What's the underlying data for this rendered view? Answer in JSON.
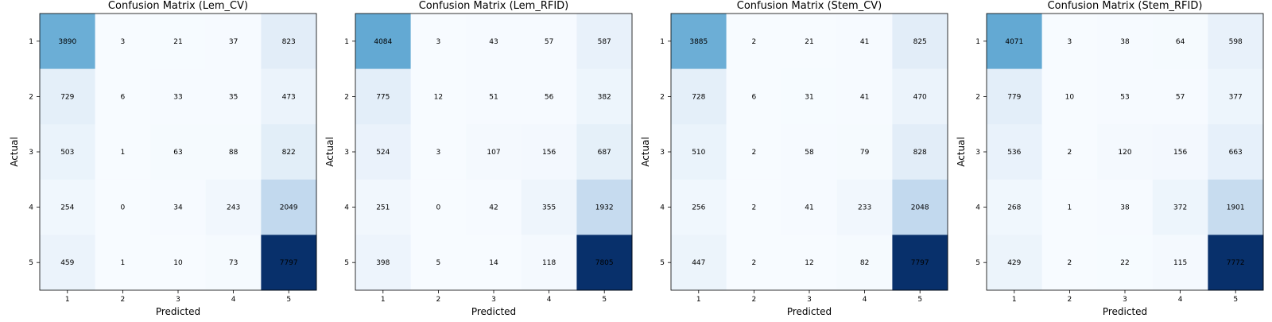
{
  "chart_data": [
    {
      "type": "heatmap",
      "title": "Confusion Matrix (Lem_CV)",
      "xlabel": "Predicted",
      "ylabel": "Actual",
      "x_labels": [
        "1",
        "2",
        "3",
        "4",
        "5"
      ],
      "y_labels": [
        "1",
        "2",
        "3",
        "4",
        "5"
      ],
      "colormap": "Blues",
      "values": [
        [
          3890,
          3,
          21,
          37,
          823
        ],
        [
          729,
          6,
          33,
          35,
          473
        ],
        [
          503,
          1,
          63,
          88,
          822
        ],
        [
          254,
          0,
          34,
          243,
          2049
        ],
        [
          459,
          1,
          10,
          73,
          7797
        ]
      ]
    },
    {
      "type": "heatmap",
      "title": "Confusion Matrix (Lem_RFID)",
      "xlabel": "Predicted",
      "ylabel": "Actual",
      "x_labels": [
        "1",
        "2",
        "3",
        "4",
        "5"
      ],
      "y_labels": [
        "1",
        "2",
        "3",
        "4",
        "5"
      ],
      "colormap": "Blues",
      "values": [
        [
          4084,
          3,
          43,
          57,
          587
        ],
        [
          775,
          12,
          51,
          56,
          382
        ],
        [
          524,
          3,
          107,
          156,
          687
        ],
        [
          251,
          0,
          42,
          355,
          1932
        ],
        [
          398,
          5,
          14,
          118,
          7805
        ]
      ]
    },
    {
      "type": "heatmap",
      "title": "Confusion Matrix (Stem_CV)",
      "xlabel": "Predicted",
      "ylabel": "Actual",
      "x_labels": [
        "1",
        "2",
        "3",
        "4",
        "5"
      ],
      "y_labels": [
        "1",
        "2",
        "3",
        "4",
        "5"
      ],
      "colormap": "Blues",
      "values": [
        [
          3885,
          2,
          21,
          41,
          825
        ],
        [
          728,
          6,
          31,
          41,
          470
        ],
        [
          510,
          2,
          58,
          79,
          828
        ],
        [
          256,
          2,
          41,
          233,
          2048
        ],
        [
          447,
          2,
          12,
          82,
          7797
        ]
      ]
    },
    {
      "type": "heatmap",
      "title": "Confusion Matrix (Stem_RFID)",
      "xlabel": "Predicted",
      "ylabel": "Actual",
      "x_labels": [
        "1",
        "2",
        "3",
        "4",
        "5"
      ],
      "y_labels": [
        "1",
        "2",
        "3",
        "4",
        "5"
      ],
      "colormap": "Blues",
      "values": [
        [
          4071,
          3,
          38,
          64,
          598
        ],
        [
          779,
          10,
          53,
          57,
          377
        ],
        [
          536,
          2,
          120,
          156,
          663
        ],
        [
          268,
          1,
          38,
          372,
          1901
        ],
        [
          429,
          2,
          22,
          115,
          7772
        ]
      ]
    }
  ]
}
